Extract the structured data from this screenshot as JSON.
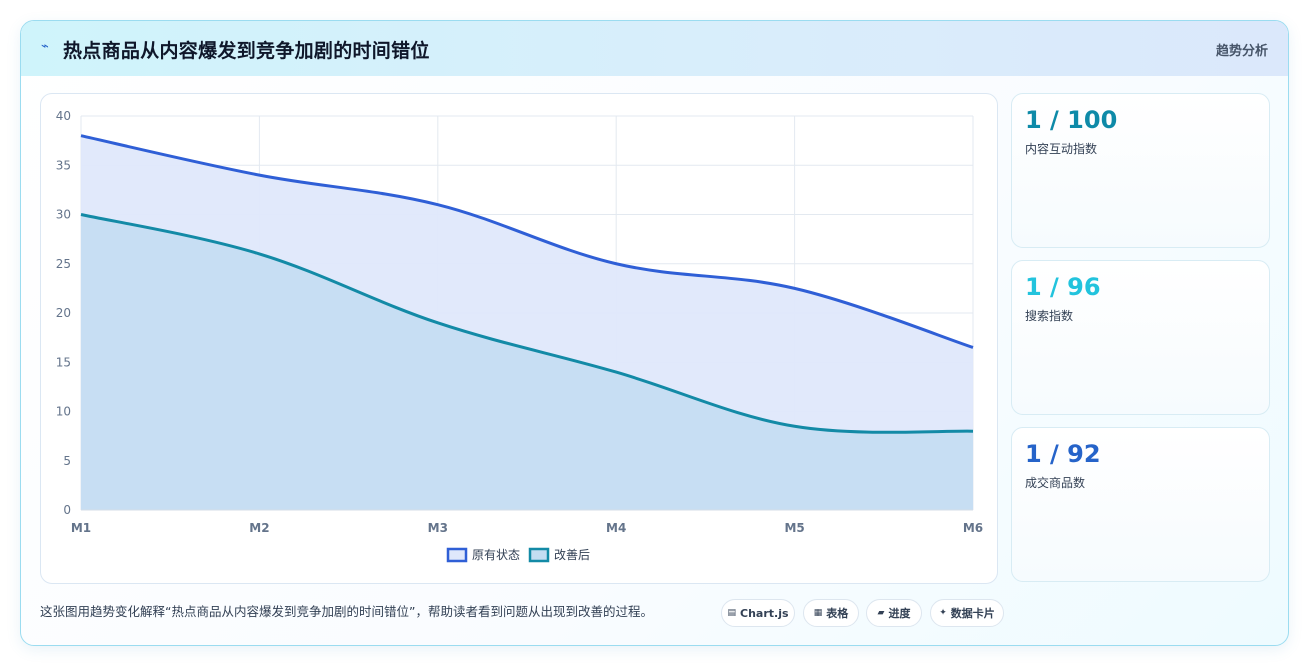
{
  "header": {
    "icon": "lightning-icon",
    "title": "热点商品从内容爆发到竞争加剧的时间错位",
    "right_label": "趋势分析"
  },
  "stats": [
    {
      "value": "1 / 100",
      "label": "内容互动指数",
      "color": "#0e8aa8"
    },
    {
      "value": "1 / 96",
      "label": "搜索指数",
      "color": "#22c3dd"
    },
    {
      "value": "1 / 92",
      "label": "成交商品数",
      "color": "#2563c9"
    }
  ],
  "caption": "这张图用趋势变化解释“热点商品从内容爆发到竞争加剧的时间错位”，帮助读者看到问题从出现到改善的过程。",
  "tags": [
    {
      "icon": "table-icon",
      "label": "Chart.js"
    },
    {
      "icon": "grid-icon",
      "label": "表格"
    },
    {
      "icon": "progress-icon",
      "label": "进度"
    },
    {
      "icon": "sparkle-icon",
      "label": "数据卡片"
    }
  ],
  "chart_data": {
    "type": "area",
    "categories": [
      "M1",
      "M2",
      "M3",
      "M4",
      "M5",
      "M6"
    ],
    "series": [
      {
        "name": "原有状态",
        "values": [
          38,
          34,
          31,
          25,
          22.5,
          16.5
        ],
        "color": "#2f5fd6",
        "fill": "#dfe8fb"
      },
      {
        "name": "改善后",
        "values": [
          30,
          26,
          19,
          14,
          8.5,
          8
        ],
        "color": "#138aa6",
        "fill": "#c5ddf2"
      }
    ],
    "ylim": [
      0,
      40
    ],
    "yticks": [
      0,
      5,
      10,
      15,
      20,
      25,
      30,
      35,
      40
    ],
    "grid": true,
    "legend": "bottom"
  }
}
